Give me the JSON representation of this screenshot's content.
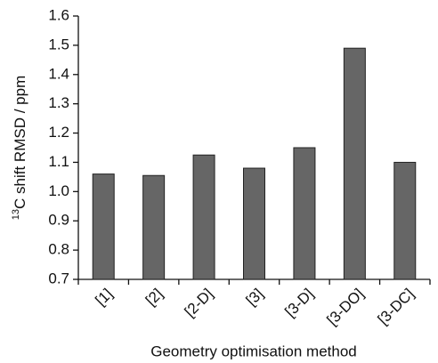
{
  "chart_data": {
    "type": "bar",
    "xlabel": "Geometry optimisation method",
    "ylabel_sup": "13",
    "ylabel": "C shift RMSD / ppm",
    "categories": [
      "[1]",
      "[2]",
      "[2-D]",
      "[3]",
      "[3-D]",
      "[3-DO]",
      "[3-DC]"
    ],
    "values": [
      1.06,
      1.055,
      1.125,
      1.08,
      1.15,
      1.49,
      1.1
    ],
    "color": "#666666",
    "ylim": [
      0.7,
      1.6
    ],
    "yticks": [
      0.7,
      0.8,
      0.9,
      {
        "value": 1,
        "label": "1.0"
      },
      1.1,
      1.2,
      1.3,
      1.4,
      1.5,
      1.6
    ],
    "grid": false
  }
}
